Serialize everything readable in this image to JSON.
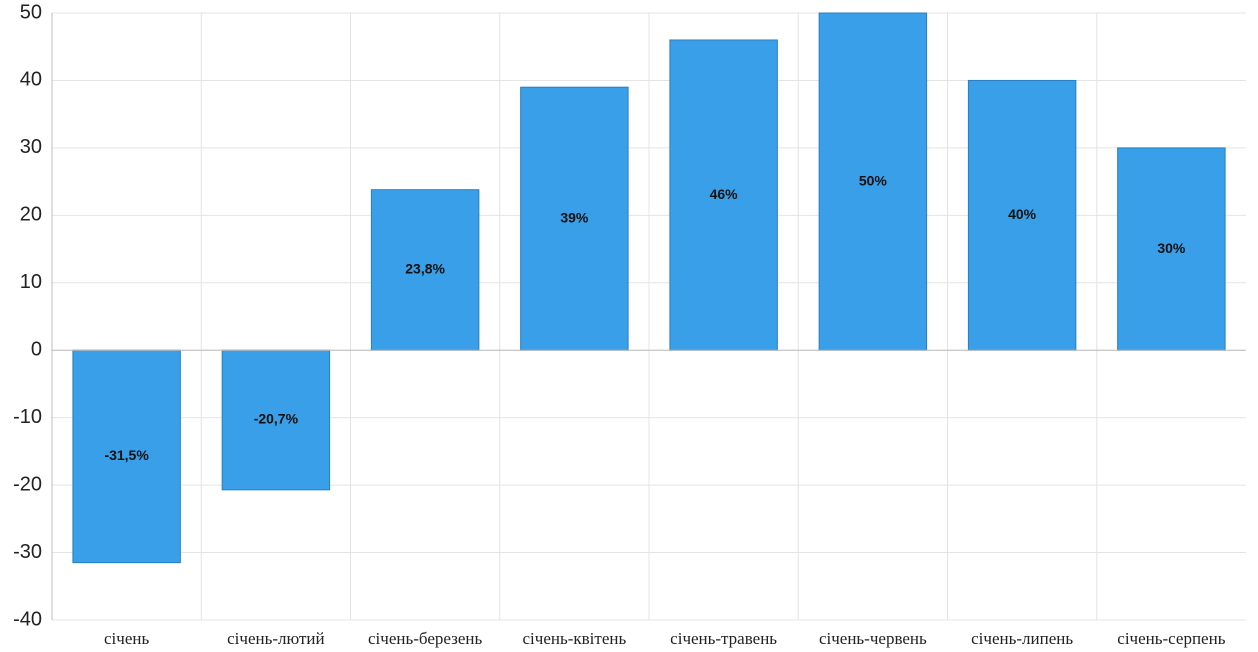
{
  "chart_data": {
    "type": "bar",
    "title": "",
    "xlabel": "",
    "ylabel": "",
    "categories": [
      "січень",
      "січень-лютий",
      "січень-березень",
      "січень-квітень",
      "січень-травень",
      "січень-червень",
      "січень-липень",
      "січень-серпень"
    ],
    "values": [
      -31.5,
      -20.7,
      23.8,
      39,
      46,
      50,
      40,
      30
    ],
    "data_labels": [
      "-31,5%",
      "-20,7%",
      "23,8%",
      "39%",
      "46%",
      "50%",
      "40%",
      "30%"
    ],
    "ylim": [
      -40,
      50
    ],
    "yticks": [
      -40,
      -30,
      -20,
      -10,
      0,
      10,
      20,
      30,
      40,
      50
    ],
    "grid": true,
    "bar_color": "#389fe8",
    "bar_edge_color": "#2a7fc0",
    "grid_color": "#e4e4e4"
  }
}
